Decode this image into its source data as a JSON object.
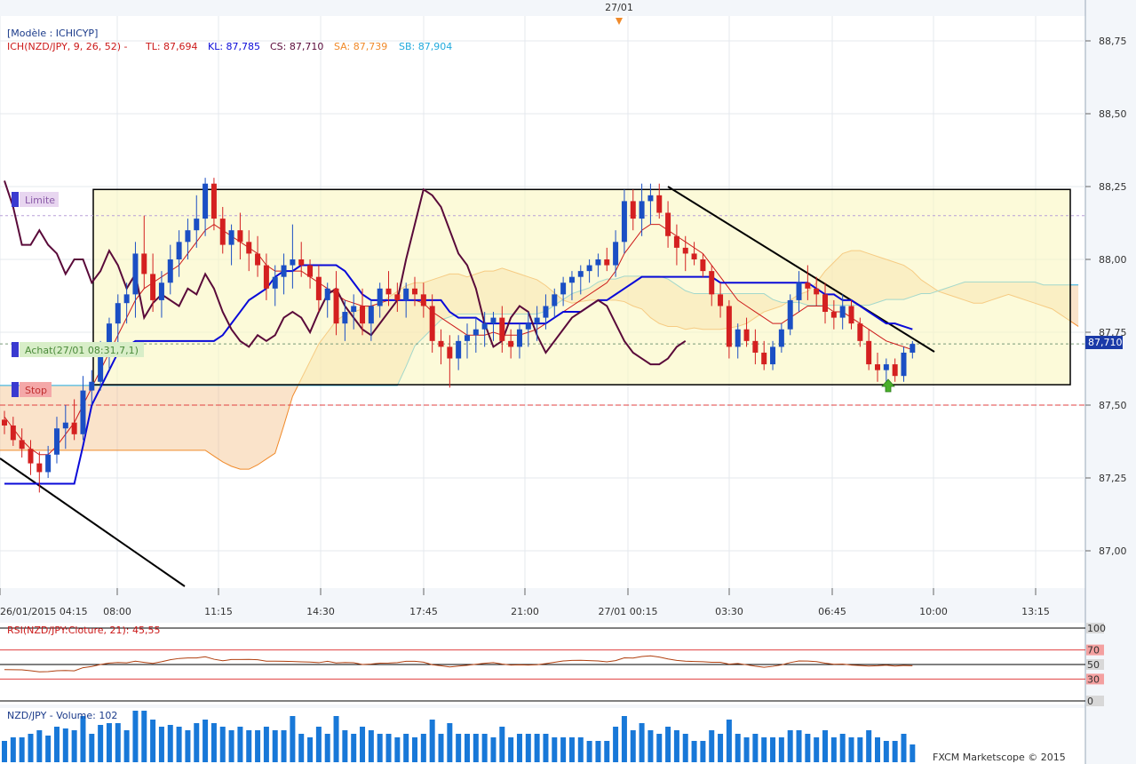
{
  "top_marker_date": "27/01",
  "main_panel": {
    "model_label": "[Modèle : ICHICYP]",
    "indicator_prefix": "ICH(NZD/JPY, 9, 26, 52) -",
    "tl": "TL: 87,694",
    "kl": "KL: 87,785",
    "cs": "CS: 87,710",
    "sa": "SA: 87,739",
    "sb": "SB: 87,904",
    "price_ticks": [
      "88,75",
      "88,50",
      "88,25",
      "88,00",
      "87,75",
      "87,50",
      "87,25",
      "87,00"
    ],
    "last_price_label": "87,710",
    "time_ticks": [
      "26/01/2015 04:15",
      "08:00",
      "11:15",
      "14:30",
      "17:45",
      "21:00",
      "27/01 00:15",
      "03:30",
      "06:45",
      "10:00",
      "13:15"
    ],
    "order_limit": "Limite",
    "order_buy": "Achat(27/01 08:31,7,1)",
    "order_stop": "Stop"
  },
  "rsi_panel": {
    "title": "RSI(NZD/JPY:Cloture, 21): 45,55",
    "ticks": [
      "100",
      "70",
      "50",
      "30",
      "0"
    ]
  },
  "volume_panel": {
    "title": "NZD/JPY - Volume: 102",
    "copyright": "FXCM Marketscope © 2015"
  },
  "colors": {
    "up_candle": "#1b4fc4",
    "down_candle": "#d42020",
    "tenkan": "#cc1a1a",
    "kijun": "#0a0ad8",
    "chikou": "#5a0a3a",
    "senkou_a": "#f08a2a",
    "senkou_b": "#22aadd",
    "box_fill": "#faf6c0",
    "volume_bar": "#1878d8"
  },
  "chart_data": {
    "type": "candlestick",
    "symbol": "NZD/JPY",
    "ylim": [
      86.88,
      88.87
    ],
    "candles": [
      [
        87.45,
        87.48,
        87.4,
        87.43
      ],
      [
        87.43,
        87.46,
        87.36,
        87.38
      ],
      [
        87.38,
        87.42,
        87.32,
        87.35
      ],
      [
        87.35,
        87.38,
        87.26,
        87.3
      ],
      [
        87.3,
        87.34,
        87.2,
        87.27
      ],
      [
        87.27,
        87.36,
        87.25,
        87.33
      ],
      [
        87.33,
        87.46,
        87.3,
        87.42
      ],
      [
        87.42,
        87.5,
        87.35,
        87.44
      ],
      [
        87.44,
        87.52,
        87.38,
        87.4
      ],
      [
        87.4,
        87.6,
        87.38,
        87.55
      ],
      [
        87.55,
        87.62,
        87.5,
        87.58
      ],
      [
        87.58,
        87.72,
        87.55,
        87.68
      ],
      [
        87.68,
        87.8,
        87.62,
        87.78
      ],
      [
        87.78,
        87.88,
        87.7,
        87.85
      ],
      [
        87.85,
        87.92,
        87.78,
        87.88
      ],
      [
        87.88,
        88.06,
        87.8,
        88.02
      ],
      [
        88.02,
        88.15,
        87.9,
        87.95
      ],
      [
        87.95,
        88.02,
        87.82,
        87.86
      ],
      [
        87.86,
        87.96,
        87.8,
        87.92
      ],
      [
        87.92,
        88.05,
        87.88,
        88.0
      ],
      [
        88.0,
        88.1,
        87.94,
        88.06
      ],
      [
        88.06,
        88.14,
        88.0,
        88.1
      ],
      [
        88.1,
        88.22,
        88.04,
        88.14
      ],
      [
        88.14,
        88.28,
        88.08,
        88.26
      ],
      [
        88.26,
        88.28,
        88.1,
        88.14
      ],
      [
        88.14,
        88.18,
        88.02,
        88.05
      ],
      [
        88.05,
        88.12,
        87.98,
        88.1
      ],
      [
        88.1,
        88.16,
        88.0,
        88.06
      ],
      [
        88.06,
        88.1,
        87.96,
        88.02
      ],
      [
        88.02,
        88.08,
        87.94,
        87.98
      ],
      [
        87.98,
        88.02,
        87.86,
        87.9
      ],
      [
        87.9,
        87.98,
        87.84,
        87.94
      ],
      [
        87.94,
        88.02,
        87.88,
        87.98
      ],
      [
        87.98,
        88.12,
        87.9,
        88.0
      ],
      [
        88.0,
        88.06,
        87.94,
        87.98
      ],
      [
        87.98,
        88.0,
        87.9,
        87.94
      ],
      [
        87.94,
        87.98,
        87.82,
        87.86
      ],
      [
        87.86,
        87.92,
        87.8,
        87.9
      ],
      [
        87.9,
        87.96,
        87.74,
        87.78
      ],
      [
        87.78,
        87.86,
        87.72,
        87.82
      ],
      [
        87.82,
        87.88,
        87.76,
        87.84
      ],
      [
        87.84,
        87.9,
        87.74,
        87.78
      ],
      [
        87.78,
        87.86,
        87.72,
        87.84
      ],
      [
        87.84,
        87.92,
        87.8,
        87.9
      ],
      [
        87.9,
        87.96,
        87.84,
        87.88
      ],
      [
        87.88,
        87.92,
        87.82,
        87.86
      ],
      [
        87.86,
        87.92,
        87.8,
        87.9
      ],
      [
        87.9,
        87.94,
        87.84,
        87.88
      ],
      [
        87.88,
        87.92,
        87.8,
        87.84
      ],
      [
        87.84,
        87.88,
        87.68,
        87.72
      ],
      [
        87.72,
        87.76,
        87.64,
        87.7
      ],
      [
        87.7,
        87.74,
        87.56,
        87.66
      ],
      [
        87.66,
        87.74,
        87.62,
        87.72
      ],
      [
        87.72,
        87.78,
        87.66,
        87.74
      ],
      [
        87.74,
        87.8,
        87.68,
        87.76
      ],
      [
        87.76,
        87.82,
        87.7,
        87.78
      ],
      [
        87.78,
        87.82,
        87.72,
        87.8
      ],
      [
        87.8,
        87.84,
        87.68,
        87.72
      ],
      [
        87.72,
        87.76,
        87.66,
        87.7
      ],
      [
        87.7,
        87.78,
        87.66,
        87.76
      ],
      [
        87.76,
        87.82,
        87.7,
        87.78
      ],
      [
        87.78,
        87.84,
        87.72,
        87.8
      ],
      [
        87.8,
        87.88,
        87.76,
        87.84
      ],
      [
        87.84,
        87.9,
        87.8,
        87.88
      ],
      [
        87.88,
        87.94,
        87.84,
        87.92
      ],
      [
        87.92,
        87.96,
        87.86,
        87.94
      ],
      [
        87.94,
        87.98,
        87.88,
        87.96
      ],
      [
        87.96,
        88.0,
        87.92,
        87.98
      ],
      [
        87.98,
        88.02,
        87.94,
        88.0
      ],
      [
        88.0,
        88.04,
        87.96,
        87.98
      ],
      [
        87.98,
        88.1,
        87.94,
        88.06
      ],
      [
        88.06,
        88.24,
        88.02,
        88.2
      ],
      [
        88.2,
        88.24,
        88.1,
        88.14
      ],
      [
        88.14,
        88.26,
        88.08,
        88.2
      ],
      [
        88.2,
        88.26,
        88.12,
        88.22
      ],
      [
        88.22,
        88.26,
        88.14,
        88.16
      ],
      [
        88.16,
        88.2,
        88.04,
        88.08
      ],
      [
        88.08,
        88.12,
        87.98,
        88.04
      ],
      [
        88.04,
        88.08,
        87.96,
        88.02
      ],
      [
        88.02,
        88.06,
        87.98,
        88.0
      ],
      [
        88.0,
        88.02,
        87.94,
        87.96
      ],
      [
        87.96,
        87.98,
        87.84,
        87.88
      ],
      [
        87.88,
        87.92,
        87.8,
        87.84
      ],
      [
        87.84,
        87.86,
        87.66,
        87.7
      ],
      [
        87.7,
        87.78,
        87.66,
        87.76
      ],
      [
        87.76,
        87.8,
        87.7,
        87.72
      ],
      [
        87.72,
        87.76,
        87.64,
        87.68
      ],
      [
        87.68,
        87.72,
        87.62,
        87.64
      ],
      [
        87.64,
        87.72,
        87.62,
        87.7
      ],
      [
        87.7,
        87.78,
        87.68,
        87.76
      ],
      [
        87.76,
        87.88,
        87.74,
        87.86
      ],
      [
        87.86,
        87.96,
        87.82,
        87.92
      ],
      [
        87.92,
        87.98,
        87.86,
        87.9
      ],
      [
        87.9,
        87.94,
        87.84,
        87.88
      ],
      [
        87.88,
        87.92,
        87.78,
        87.82
      ],
      [
        87.82,
        87.86,
        87.76,
        87.8
      ],
      [
        87.8,
        87.88,
        87.76,
        87.84
      ],
      [
        87.84,
        87.86,
        87.76,
        87.78
      ],
      [
        87.78,
        87.8,
        87.7,
        87.72
      ],
      [
        87.72,
        87.76,
        87.62,
        87.64
      ],
      [
        87.64,
        87.68,
        87.58,
        87.62
      ],
      [
        87.62,
        87.66,
        87.58,
        87.64
      ],
      [
        87.64,
        87.66,
        87.58,
        87.6
      ],
      [
        87.6,
        87.7,
        87.58,
        87.68
      ],
      [
        87.68,
        87.72,
        87.66,
        87.71
      ]
    ],
    "zone_top": 88.24,
    "zone_bottom": 87.57,
    "limit_price": 88.15,
    "buy_price": 87.71,
    "stop_price": 87.5,
    "tenkan": [
      87.46,
      87.42,
      87.38,
      87.35,
      87.33,
      87.33,
      87.36,
      87.4,
      87.44,
      87.5,
      87.56,
      87.62,
      87.68,
      87.74,
      87.8,
      87.86,
      87.9,
      87.92,
      87.94,
      87.96,
      87.98,
      88.02,
      88.06,
      88.1,
      88.12,
      88.1,
      88.08,
      88.06,
      88.04,
      88.02,
      87.98,
      87.96,
      87.96,
      87.96,
      87.96,
      87.94,
      87.92,
      87.9,
      87.88,
      87.86,
      87.85,
      87.84,
      87.84,
      87.85,
      87.86,
      87.86,
      87.86,
      87.86,
      87.85,
      87.82,
      87.8,
      87.78,
      87.76,
      87.74,
      87.74,
      87.74,
      87.75,
      87.74,
      87.74,
      87.74,
      87.75,
      87.76,
      87.78,
      87.8,
      87.82,
      87.84,
      87.86,
      87.88,
      87.9,
      87.92,
      87.96,
      88.02,
      88.06,
      88.1,
      88.12,
      88.12,
      88.1,
      88.08,
      88.06,
      88.04,
      88.02,
      87.98,
      87.94,
      87.9,
      87.86,
      87.84,
      87.82,
      87.8,
      87.78,
      87.78,
      87.8,
      87.82,
      87.84,
      87.84,
      87.84,
      87.82,
      87.82,
      87.8,
      87.78,
      87.76,
      87.74,
      87.72,
      87.71,
      87.7,
      87.69
    ],
    "kijun": [
      87.23,
      87.23,
      87.23,
      87.23,
      87.23,
      87.23,
      87.23,
      87.23,
      87.23,
      87.36,
      87.5,
      87.56,
      87.62,
      87.68,
      87.7,
      87.72,
      87.72,
      87.72,
      87.72,
      87.72,
      87.72,
      87.72,
      87.72,
      87.72,
      87.72,
      87.74,
      87.78,
      87.82,
      87.86,
      87.88,
      87.9,
      87.94,
      87.96,
      87.96,
      87.98,
      87.98,
      87.98,
      87.98,
      87.98,
      87.96,
      87.92,
      87.88,
      87.86,
      87.86,
      87.86,
      87.86,
      87.86,
      87.86,
      87.86,
      87.86,
      87.86,
      87.82,
      87.8,
      87.8,
      87.8,
      87.78,
      87.78,
      87.78,
      87.78,
      87.78,
      87.78,
      87.78,
      87.78,
      87.8,
      87.82,
      87.82,
      87.82,
      87.84,
      87.86,
      87.86,
      87.88,
      87.9,
      87.92,
      87.94,
      87.94,
      87.94,
      87.94,
      87.94,
      87.94,
      87.94,
      87.94,
      87.94,
      87.92,
      87.92,
      87.92,
      87.92,
      87.92,
      87.92,
      87.92,
      87.92,
      87.92,
      87.92,
      87.92,
      87.9,
      87.88,
      87.88,
      87.86,
      87.86,
      87.84,
      87.82,
      87.8,
      87.78,
      87.78,
      87.77,
      87.76
    ],
    "chikou": [
      88.27,
      88.18,
      88.05,
      88.05,
      88.1,
      88.05,
      88.02,
      87.95,
      88.0,
      88.0,
      87.92,
      87.96,
      88.03,
      87.98,
      87.9,
      87.95,
      87.8,
      87.85,
      87.88,
      87.86,
      87.84,
      87.9,
      87.88,
      87.95,
      87.9,
      87.82,
      87.76,
      87.72,
      87.7,
      87.74,
      87.72,
      87.74,
      87.8,
      87.82,
      87.8,
      87.75,
      87.82,
      87.88,
      87.9,
      87.84,
      87.8,
      87.76,
      87.74,
      87.78,
      87.82,
      87.86,
      88.0,
      88.12,
      88.24,
      88.22,
      88.18,
      88.1,
      88.02,
      87.98,
      87.9,
      87.78,
      87.7,
      87.72,
      87.8,
      87.84,
      87.82,
      87.74,
      87.68,
      87.72,
      87.76,
      87.8,
      87.82,
      87.84,
      87.86,
      87.84,
      87.78,
      87.72,
      87.68,
      87.66,
      87.64,
      87.64,
      87.66,
      87.7,
      87.72
    ]
  }
}
